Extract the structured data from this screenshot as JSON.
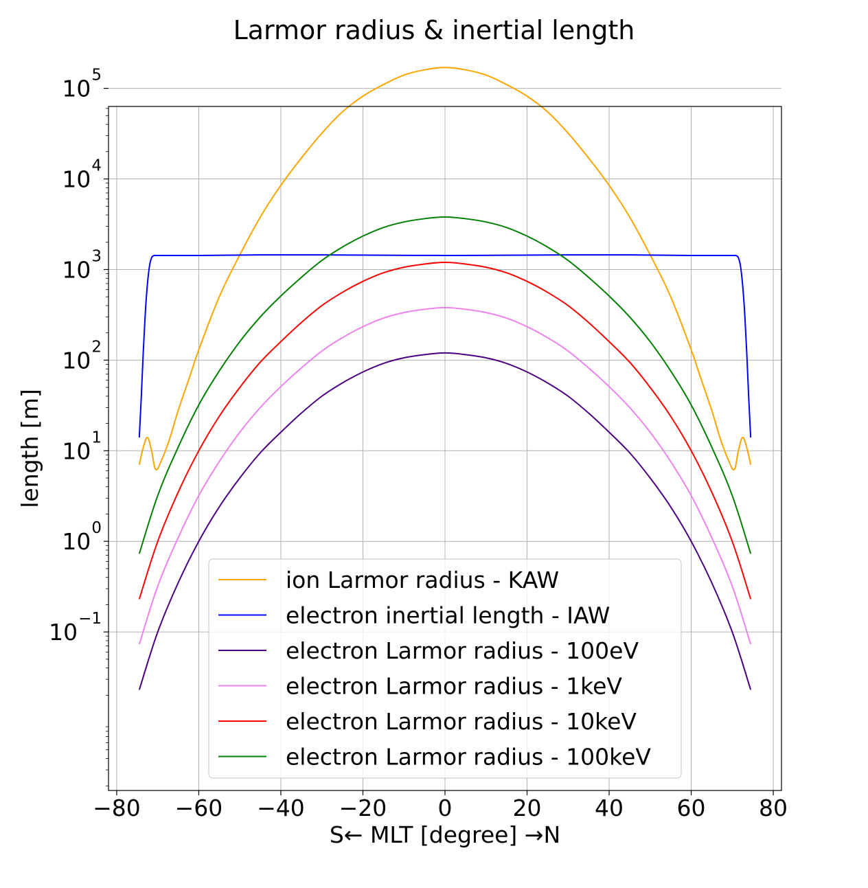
{
  "chart_data": {
    "type": "line",
    "title": "Larmor radius & inertial length",
    "xlabel": "S← MLT [degree] →N",
    "ylabel": "length [m]",
    "xlim": [
      -82,
      82
    ],
    "ylim_log10": [
      -2.75,
      4.8
    ],
    "y_scale": "log",
    "grid": true,
    "legend_position": "lower-center",
    "x_ticks": [
      -80,
      -60,
      -40,
      -20,
      0,
      20,
      40,
      60,
      80
    ],
    "x_tick_labels": [
      "−80",
      "−60",
      "−40",
      "−20",
      "0",
      "20",
      "40",
      "60",
      "80"
    ],
    "y_ticks_log10": [
      -1,
      0,
      1,
      2,
      3,
      4,
      5
    ],
    "y_tick_labels": [
      {
        "base": "10",
        "exp": "−1"
      },
      {
        "base": "10",
        "exp": "0"
      },
      {
        "base": "10",
        "exp": "1"
      },
      {
        "base": "10",
        "exp": "2"
      },
      {
        "base": "10",
        "exp": "3"
      },
      {
        "base": "10",
        "exp": "4"
      },
      {
        "base": "10",
        "exp": "5"
      }
    ],
    "series": [
      {
        "name": "ion Larmor radius - KAW",
        "color": "#ffa500",
        "x": [
          -74.5,
          -73.5,
          -72.5,
          -71.5,
          -70.5,
          -69,
          -67,
          -65,
          -62,
          -60,
          -55,
          -50,
          -45,
          -40,
          -35,
          -30,
          -25,
          -20,
          -15,
          -10,
          -5,
          0,
          5,
          10,
          15,
          20,
          25,
          30,
          35,
          40,
          45,
          50,
          55,
          60,
          62,
          65,
          67,
          69,
          70.5,
          71.5,
          72.5,
          73.5,
          74.5
        ],
        "y": [
          7,
          11,
          14,
          10,
          6.2,
          8,
          14,
          28,
          70,
          130,
          500,
          1450,
          3800,
          8500,
          17000,
          32000,
          55000,
          82000,
          110000,
          140000,
          160000,
          170000,
          160000,
          140000,
          110000,
          82000,
          55000,
          32000,
          17000,
          8500,
          3800,
          1450,
          500,
          130,
          70,
          28,
          14,
          8,
          6.2,
          10,
          14,
          11,
          7
        ]
      },
      {
        "name": "electron inertial length - IAW",
        "color": "#0000ff",
        "x": [
          -74.5,
          -74,
          -73.5,
          -73,
          -72.5,
          -72,
          -71.5,
          -71,
          -70.5,
          -70,
          -60,
          -45,
          -30,
          -15,
          0,
          15,
          30,
          45,
          60,
          70,
          70.5,
          71,
          71.5,
          72,
          72.5,
          73,
          73.5,
          74,
          74.5
        ],
        "y": [
          14,
          40,
          130,
          350,
          700,
          1100,
          1350,
          1420,
          1430,
          1430,
          1430,
          1450,
          1450,
          1440,
          1430,
          1440,
          1450,
          1450,
          1430,
          1430,
          1430,
          1420,
          1350,
          1100,
          700,
          350,
          130,
          40,
          14
        ]
      },
      {
        "name": "electron Larmor radius - 100eV",
        "color": "#4b0082",
        "x": [
          -74.5,
          -70,
          -65,
          -60,
          -55,
          -50,
          -45,
          -40,
          -35,
          -30,
          -25,
          -20,
          -15,
          -10,
          -5,
          0,
          5,
          10,
          15,
          20,
          25,
          30,
          35,
          40,
          45,
          50,
          55,
          60,
          65,
          70,
          74.5
        ],
        "y": [
          0.023,
          0.1,
          0.35,
          1.0,
          2.4,
          5.0,
          9.5,
          16,
          26,
          40,
          56,
          74,
          92,
          106,
          115,
          120,
          115,
          106,
          92,
          74,
          56,
          40,
          26,
          16,
          9.5,
          5.0,
          2.4,
          1.0,
          0.35,
          0.1,
          0.023
        ]
      },
      {
        "name": "electron Larmor radius - 1keV",
        "color": "#ee82ee",
        "x": [
          -74.5,
          -70,
          -65,
          -60,
          -55,
          -50,
          -45,
          -40,
          -35,
          -30,
          -25,
          -20,
          -15,
          -10,
          -5,
          0,
          5,
          10,
          15,
          20,
          25,
          30,
          35,
          40,
          45,
          50,
          55,
          60,
          65,
          70,
          74.5
        ],
        "y": [
          0.073,
          0.32,
          1.1,
          3.2,
          7.6,
          16,
          30,
          51,
          82,
          126,
          177,
          234,
          291,
          335,
          364,
          380,
          364,
          335,
          291,
          234,
          177,
          126,
          82,
          51,
          30,
          16,
          7.6,
          3.2,
          1.1,
          0.32,
          0.073
        ]
      },
      {
        "name": "electron Larmor radius - 10keV",
        "color": "#ff0000",
        "x": [
          -74.5,
          -70,
          -65,
          -60,
          -55,
          -50,
          -45,
          -40,
          -35,
          -30,
          -25,
          -20,
          -15,
          -10,
          -5,
          0,
          5,
          10,
          15,
          20,
          25,
          30,
          35,
          40,
          45,
          50,
          55,
          60,
          65,
          70,
          74.5
        ],
        "y": [
          0.23,
          1.0,
          3.5,
          10,
          24,
          50,
          95,
          160,
          260,
          400,
          560,
          740,
          920,
          1060,
          1150,
          1200,
          1150,
          1060,
          920,
          740,
          560,
          400,
          260,
          160,
          95,
          50,
          24,
          10,
          3.5,
          1.0,
          0.23
        ]
      },
      {
        "name": "electron Larmor radius - 100keV",
        "color": "#008000",
        "x": [
          -74.5,
          -70,
          -65,
          -60,
          -55,
          -50,
          -45,
          -40,
          -35,
          -30,
          -25,
          -20,
          -15,
          -10,
          -5,
          0,
          5,
          10,
          15,
          20,
          25,
          30,
          35,
          40,
          45,
          50,
          55,
          60,
          65,
          70,
          74.5
        ],
        "y": [
          0.73,
          3.2,
          11,
          32,
          76,
          160,
          300,
          510,
          820,
          1260,
          1770,
          2340,
          2910,
          3350,
          3640,
          3800,
          3640,
          3350,
          2910,
          2340,
          1770,
          1260,
          820,
          510,
          300,
          160,
          76,
          32,
          11,
          3.2,
          0.73
        ]
      }
    ]
  }
}
